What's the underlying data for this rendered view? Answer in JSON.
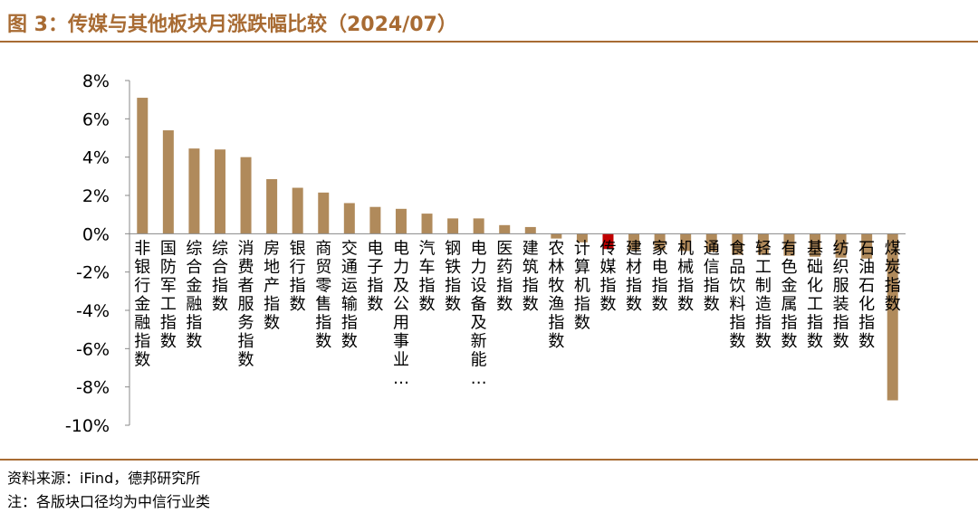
{
  "title": "图 3：传媒与其他板块月涨跌幅比较（2024/07）",
  "source": "资料来源：iFind，德邦研究所",
  "note": "注：各版块口径均为中信行业类",
  "colors": {
    "bar": "#b08a5b",
    "highlight": "#c00000",
    "accent": "#a86b33"
  },
  "chart_data": {
    "type": "bar",
    "title": "",
    "xlabel": "",
    "ylabel": "",
    "ylim": [
      -10,
      8
    ],
    "ytick_step": 2,
    "ytick_format": "percent",
    "highlight": "传媒指数",
    "categories": [
      "非银行金融指数",
      "国防军工指数",
      "综合金融指数",
      "综合指数",
      "消费者服务指数",
      "房地产指数",
      "银行指数",
      "商贸零售指数",
      "交通运输指数",
      "电子指数",
      "电力及公用事业…",
      "汽车指数",
      "钢铁指数",
      "电力设备及新能…",
      "医药指数",
      "建筑指数",
      "农林牧渔指数",
      "计算机指数",
      "传媒指数",
      "建材指数",
      "家电指数",
      "机械指数",
      "通信指数",
      "食品饮料指数",
      "轻工制造指数",
      "有色金属指数",
      "基础化工指数",
      "纺织服装指数",
      "石油石化指数",
      "煤炭指数"
    ],
    "values": [
      7.1,
      5.4,
      4.45,
      4.4,
      4.0,
      2.85,
      2.4,
      2.15,
      1.6,
      1.4,
      1.3,
      1.05,
      0.8,
      0.8,
      0.45,
      0.35,
      -0.25,
      -0.45,
      -0.8,
      -0.85,
      -0.85,
      -0.9,
      -0.95,
      -1.1,
      -1.1,
      -1.15,
      -1.2,
      -1.25,
      -1.3,
      -8.7
    ]
  }
}
